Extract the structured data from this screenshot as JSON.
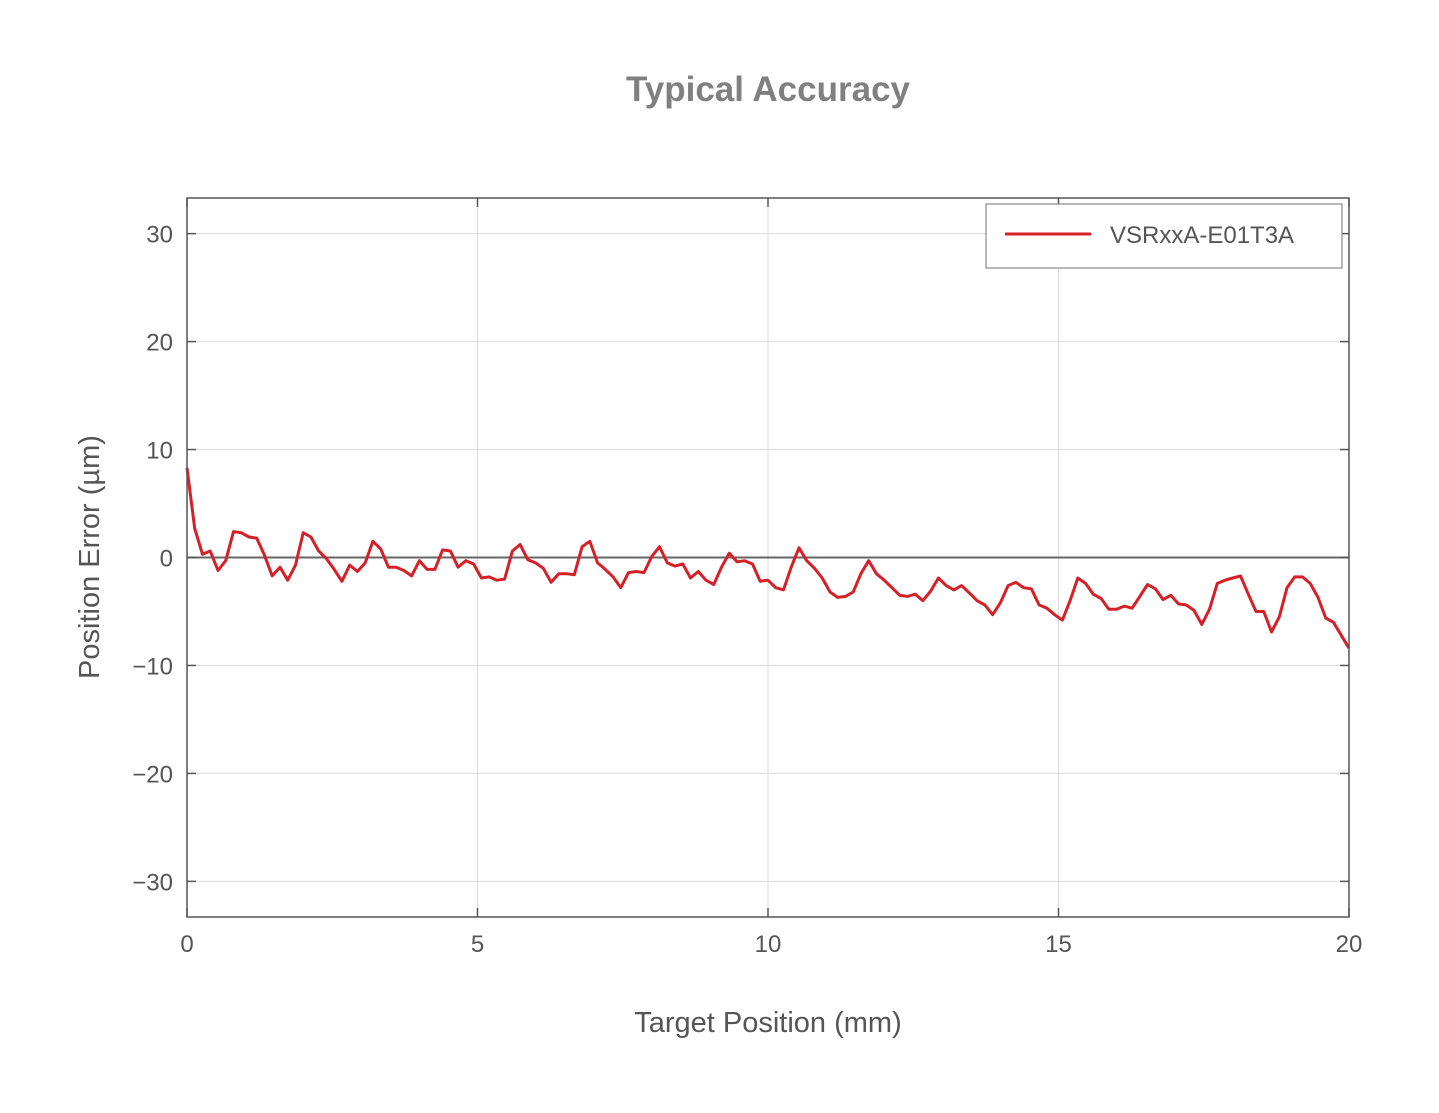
{
  "chart_data": {
    "type": "line",
    "title": "Typical Accuracy",
    "xlabel": "Target Position (mm)",
    "ylabel": "Position Error (µm)",
    "xlim": [
      0,
      20
    ],
    "ylim": [
      -33.3,
      33.3
    ],
    "xticks": [
      0,
      5,
      10,
      15,
      20
    ],
    "yticks": [
      -30,
      -20,
      -10,
      0,
      10,
      20,
      30
    ],
    "xtick_labels": [
      "0",
      "5",
      "10",
      "15",
      "20"
    ],
    "ytick_labels": [
      "−30",
      "−20",
      "−10",
      "0",
      "10",
      "20",
      "30"
    ],
    "grid": true,
    "zero_line": true,
    "legend_position": "top-right",
    "series": [
      {
        "name": "VSRxxA-E01T3A",
        "color": "#d62028",
        "x_start": 0,
        "x_step": 0.13333,
        "values": [
          8.3,
          2.7,
          0.3,
          0.6,
          -1.2,
          -0.3,
          2.4,
          2.3,
          1.9,
          1.8,
          0.2,
          -1.7,
          -0.9,
          -2.1,
          -0.7,
          2.3,
          1.9,
          0.6,
          -0.1,
          -1.1,
          -2.2,
          -0.7,
          -1.3,
          -0.5,
          1.5,
          0.8,
          -0.9,
          -0.9,
          -1.2,
          -1.7,
          -0.3,
          -1.1,
          -1.1,
          0.7,
          0.6,
          -0.9,
          -0.3,
          -0.6,
          -1.9,
          -1.8,
          -2.1,
          -2.0,
          0.6,
          1.2,
          -0.2,
          -0.5,
          -1.0,
          -2.3,
          -1.5,
          -1.5,
          -1.6,
          1.0,
          1.5,
          -0.5,
          -1.1,
          -1.8,
          -2.8,
          -1.4,
          -1.3,
          -1.4,
          0.1,
          1.0,
          -0.5,
          -0.8,
          -0.6,
          -1.9,
          -1.3,
          -2.1,
          -2.5,
          -0.9,
          0.4,
          -0.4,
          -0.3,
          -0.6,
          -2.2,
          -2.1,
          -2.8,
          -3.0,
          -0.9,
          0.9,
          -0.3,
          -1.0,
          -1.9,
          -3.2,
          -3.7,
          -3.6,
          -3.2,
          -1.5,
          -0.3,
          -1.5,
          -2.1,
          -2.8,
          -3.5,
          -3.6,
          -3.4,
          -4.0,
          -3.1,
          -1.9,
          -2.6,
          -3.0,
          -2.6,
          -3.3,
          -4.0,
          -4.4,
          -5.3,
          -4.2,
          -2.6,
          -2.3,
          -2.8,
          -2.9,
          -4.4,
          -4.7,
          -5.3,
          -5.8,
          -4.0,
          -1.9,
          -2.4,
          -3.4,
          -3.8,
          -4.8,
          -4.8,
          -4.5,
          -4.7,
          -3.6,
          -2.5,
          -2.9,
          -3.9,
          -3.5,
          -4.3,
          -4.4,
          -4.9,
          -6.2,
          -4.8,
          -2.4,
          -2.1,
          -1.9,
          -1.7,
          -3.4,
          -5.0,
          -5.0,
          -6.9,
          -5.5,
          -2.8,
          -1.8,
          -1.8,
          -2.4,
          -3.7,
          -5.6,
          -6.0,
          -7.2,
          -8.4
        ]
      }
    ]
  }
}
